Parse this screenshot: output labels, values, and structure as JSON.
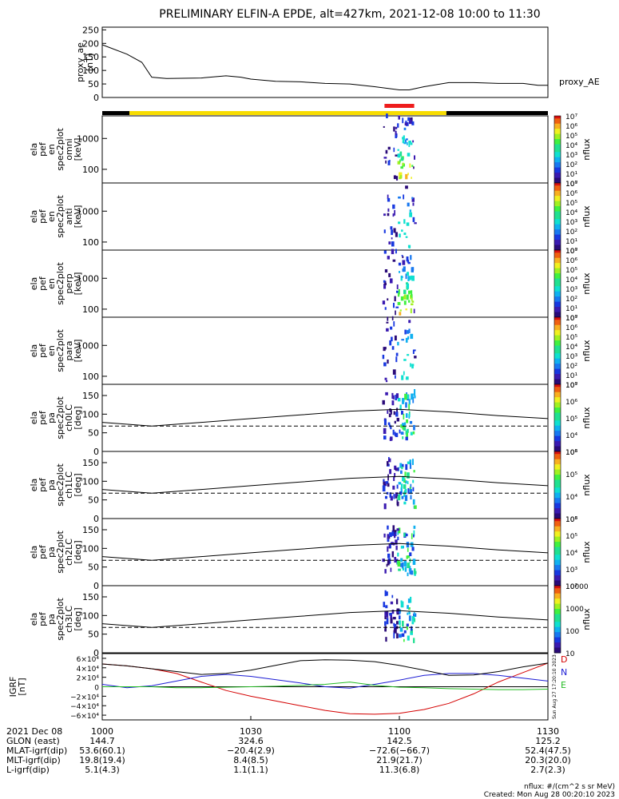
{
  "title": "PRELIMINARY ELFIN-A EPDE, alt=427km, 2021-12-08 10:00 to 11:30",
  "colors": {
    "bar_black": "#000000",
    "bar_yellow": "#f7dc00",
    "bar_red": "#ee1c1c",
    "bfield_D": "#d40000",
    "bfield_N": "#1c1cd4",
    "bfield_E": "#22bb22",
    "bfield_total": "#000000"
  },
  "chart_data": [
    {
      "type": "line",
      "id": "proxy_ae",
      "ylabel": [
        "proxy_ae",
        "[nT]"
      ],
      "series_label": "proxy_AE",
      "ylim": [
        0,
        260
      ],
      "yticks": [
        "0",
        "50",
        "100",
        "150",
        "200",
        "250"
      ],
      "x": [
        0,
        5,
        8,
        10,
        13,
        20,
        25,
        28,
        30,
        35,
        40,
        45,
        50,
        55,
        60,
        62,
        65,
        70,
        75,
        80,
        85,
        88,
        90
      ],
      "y": [
        195,
        160,
        130,
        75,
        70,
        72,
        80,
        75,
        68,
        60,
        58,
        52,
        50,
        40,
        28,
        28,
        40,
        55,
        55,
        52,
        52,
        45,
        45
      ]
    },
    {
      "type": "heatmap",
      "id": "omni",
      "ylabel": [
        "ela",
        "pef",
        "en",
        "spec2plot",
        "omni",
        "[keV]"
      ],
      "yticks": [
        "100",
        "1000"
      ],
      "scale": "log",
      "cbar_ticks": [
        "10⁰",
        "10¹",
        "10²",
        "10³",
        "10⁴",
        "10⁵",
        "10⁶",
        "10⁷"
      ],
      "cbar_label": "nflux"
    },
    {
      "type": "heatmap",
      "id": "anti",
      "ylabel": [
        "ela",
        "pef",
        "en",
        "spec2plot",
        "anti",
        "[keV]"
      ],
      "yticks": [
        "100",
        "1000"
      ],
      "scale": "log",
      "cbar_ticks": [
        "10⁰",
        "10¹",
        "10²",
        "10³",
        "10⁴",
        "10⁵",
        "10⁶",
        "10⁷"
      ],
      "cbar_label": "nflux"
    },
    {
      "type": "heatmap",
      "id": "perp",
      "ylabel": [
        "ela",
        "pef",
        "en",
        "spec2plot",
        "perp",
        "[keV]"
      ],
      "yticks": [
        "100",
        "1000"
      ],
      "scale": "log",
      "cbar_ticks": [
        "10⁰",
        "10¹",
        "10²",
        "10³",
        "10⁴",
        "10⁵",
        "10⁶",
        "10⁷"
      ],
      "cbar_label": "nflux"
    },
    {
      "type": "heatmap",
      "id": "para",
      "ylabel": [
        "ela",
        "pef",
        "en",
        "spec2plot",
        "para",
        "[keV]"
      ],
      "yticks": [
        "100",
        "1000"
      ],
      "scale": "log",
      "cbar_ticks": [
        "10⁰",
        "10¹",
        "10²",
        "10³",
        "10⁴",
        "10⁵",
        "10⁶",
        "10⁷"
      ],
      "cbar_label": "nflux"
    },
    {
      "type": "heatmap",
      "id": "ch0LC",
      "ylabel": [
        "ela",
        "pef",
        "pa",
        "spec2plot",
        "ch0LC",
        "[deg]"
      ],
      "yticks": [
        "0",
        "50",
        "100",
        "150"
      ],
      "ylim": [
        0,
        180
      ],
      "cbar_ticks": [
        "10³",
        "10⁴",
        "10⁵",
        "10⁶",
        "10⁷"
      ],
      "cbar_label": "nflux"
    },
    {
      "type": "heatmap",
      "id": "ch1LC",
      "ylabel": [
        "ela",
        "pef",
        "pa",
        "spec2plot",
        "ch1LC",
        "[deg]"
      ],
      "yticks": [
        "0",
        "50",
        "100",
        "150"
      ],
      "ylim": [
        0,
        180
      ],
      "cbar_ticks": [
        "10³",
        "10⁴",
        "10⁵",
        "10⁶"
      ],
      "cbar_label": "nflux"
    },
    {
      "type": "heatmap",
      "id": "ch2LC",
      "ylabel": [
        "ela",
        "pef",
        "pa",
        "spec2plot",
        "ch2LC",
        "[deg]"
      ],
      "yticks": [
        "0",
        "50",
        "100",
        "150"
      ],
      "ylim": [
        0,
        180
      ],
      "cbar_ticks": [
        "10²",
        "10³",
        "10⁴",
        "10⁵",
        "10⁶"
      ],
      "cbar_label": "nflux"
    },
    {
      "type": "heatmap",
      "id": "ch3LC",
      "ylabel": [
        "ela",
        "pef",
        "pa",
        "spec2plot",
        "ch3LC",
        "[deg]"
      ],
      "yticks": [
        "0",
        "50",
        "100",
        "150"
      ],
      "ylim": [
        0,
        180
      ],
      "cbar_ticks": [
        "10",
        "100",
        "1000",
        "10000"
      ],
      "cbar_label": "nflux"
    },
    {
      "type": "line",
      "id": "igrf",
      "ylabel": [
        "IGRF",
        "[nT]"
      ],
      "ylim": [
        -70000,
        70000
      ],
      "yticks": [
        "−6×10⁴",
        "−4×10⁴",
        "−2×10⁴",
        "0",
        "2×10⁴",
        "4×10⁴",
        "6×10⁴"
      ],
      "legend": [
        "D",
        "N",
        "E"
      ],
      "side_text": "Sun Aug 27 17:20:10 2023",
      "series": [
        {
          "name": "D",
          "x": [
            0,
            5,
            10,
            15,
            20,
            25,
            30,
            35,
            40,
            45,
            50,
            55,
            60,
            65,
            70,
            75,
            80,
            85,
            90
          ],
          "y": [
            48000,
            44000,
            38000,
            28000,
            10000,
            -8000,
            -20000,
            -30000,
            -40000,
            -50000,
            -57000,
            -58000,
            -56000,
            -48000,
            -35000,
            -15000,
            10000,
            30000,
            50000
          ]
        },
        {
          "name": "N",
          "x": [
            0,
            5,
            10,
            15,
            20,
            25,
            30,
            35,
            40,
            45,
            50,
            55,
            60,
            65,
            70,
            75,
            80,
            85,
            90
          ],
          "y": [
            5000,
            -2000,
            2000,
            12000,
            22000,
            26000,
            22000,
            15000,
            8000,
            0,
            -3000,
            5000,
            14000,
            24000,
            28000,
            28000,
            24000,
            18000,
            12000
          ]
        },
        {
          "name": "E",
          "x": [
            0,
            5,
            10,
            15,
            20,
            25,
            30,
            35,
            40,
            45,
            50,
            55,
            60,
            65,
            70,
            75,
            80,
            85,
            90
          ],
          "y": [
            0,
            0,
            0,
            -2000,
            -2000,
            -1000,
            0,
            1000,
            3000,
            5000,
            10000,
            3000,
            -1000,
            -2000,
            -4000,
            -5000,
            -6000,
            -6000,
            -5000
          ]
        },
        {
          "name": "total",
          "x": [
            0,
            5,
            10,
            15,
            20,
            25,
            30,
            35,
            40,
            45,
            50,
            55,
            60,
            65,
            70,
            75,
            80,
            85,
            90
          ],
          "y": [
            48000,
            44000,
            38000,
            32000,
            26000,
            28000,
            35000,
            45000,
            55000,
            57000,
            56000,
            53000,
            45000,
            35000,
            24000,
            25000,
            32000,
            42000,
            50000
          ]
        }
      ]
    }
  ],
  "x_axis": {
    "row_labels": [
      "2021 Dec 08",
      "GLON (east)",
      "MLAT-igrf(dip)",
      "MLT-igrf(dip)",
      "L-igrf(dip)"
    ],
    "columns": [
      {
        "x": 0,
        "values": [
          "1000",
          "144.7",
          "53.6(60.1)",
          "19.8(19.4)",
          "5.1(4.3)"
        ]
      },
      {
        "x": 30,
        "values": [
          "1030",
          "324.6",
          "−20.4(2.9)",
          "8.4(8.5)",
          "1.1(1.1)"
        ]
      },
      {
        "x": 60,
        "values": [
          "1100",
          "142.5",
          "−72.6(−66.7)",
          "21.9(21.7)",
          "11.3(6.8)"
        ]
      },
      {
        "x": 90,
        "values": [
          "1130",
          "125.2",
          "52.4(47.5)",
          "20.3(20.0)",
          "2.7(2.3)"
        ]
      }
    ]
  },
  "footer": {
    "units": "nflux: #/(cm^2 s sr MeV)",
    "created": "Created: Mon Aug 28 00:20:10 2023"
  }
}
